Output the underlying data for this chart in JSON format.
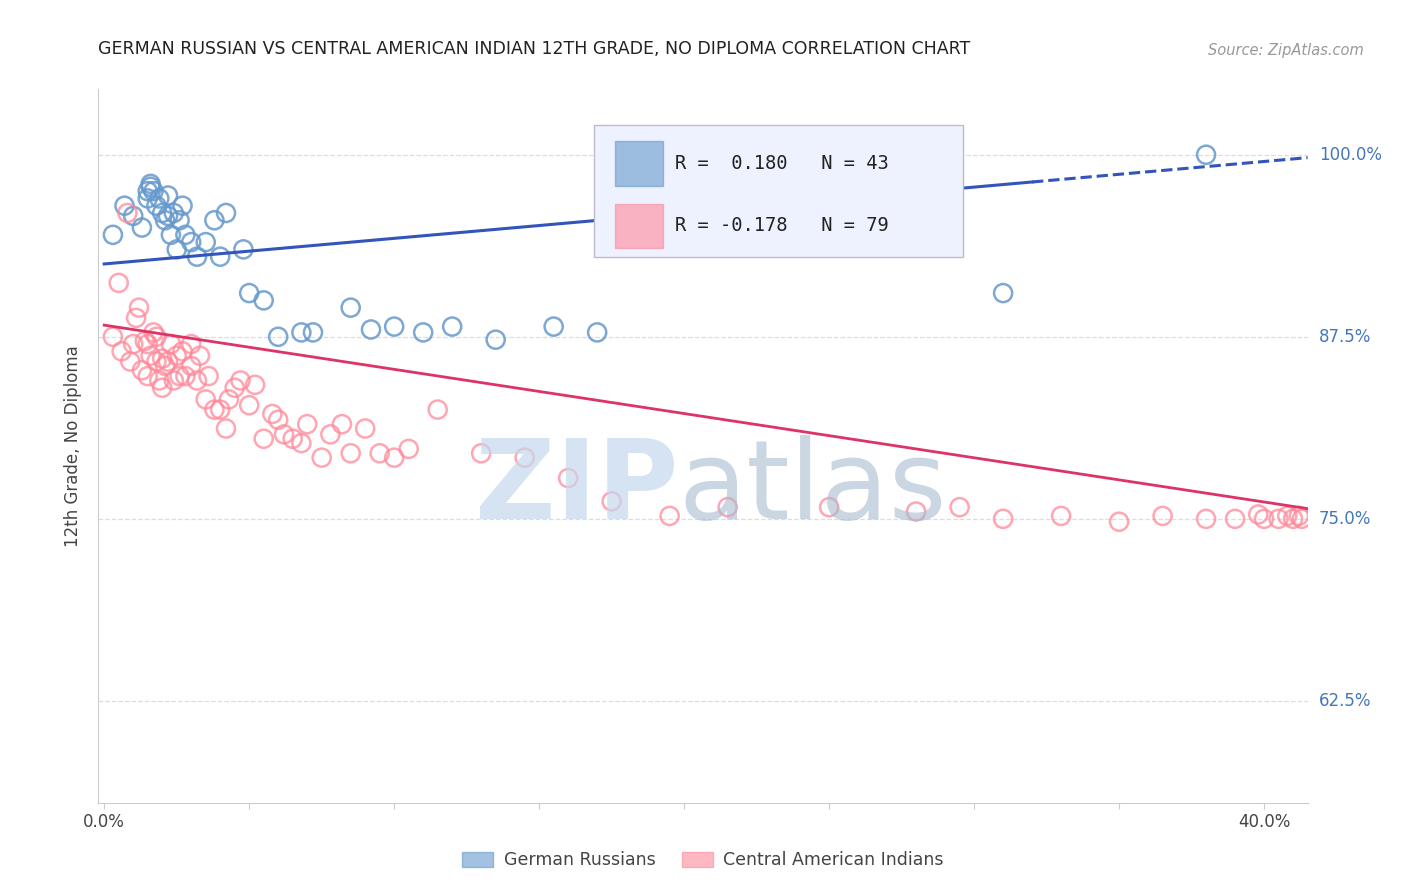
{
  "title": "GERMAN RUSSIAN VS CENTRAL AMERICAN INDIAN 12TH GRADE, NO DIPLOMA CORRELATION CHART",
  "source": "Source: ZipAtlas.com",
  "ylabel": "12th Grade, No Diploma",
  "blue_label": "German Russians",
  "pink_label": "Central American Indians",
  "blue_R": 0.18,
  "blue_N": 43,
  "pink_R": -0.178,
  "pink_N": 79,
  "xlim": [
    -0.002,
    0.415
  ],
  "ylim": [
    0.555,
    1.045
  ],
  "xticks": [
    0.0,
    0.05,
    0.1,
    0.15,
    0.2,
    0.25,
    0.3,
    0.35,
    0.4
  ],
  "yticks": [
    0.625,
    0.75,
    0.875,
    1.0
  ],
  "ytick_labels": [
    "62.5%",
    "75.0%",
    "87.5%",
    "100.0%"
  ],
  "xtick_labels": [
    "0.0%",
    "",
    "",
    "",
    "",
    "",
    "",
    "",
    "40.0%"
  ],
  "blue_line_x": [
    0.0,
    0.415
  ],
  "blue_line_y": [
    0.925,
    0.998
  ],
  "blue_line_dash_start": 0.32,
  "pink_line_x": [
    0.0,
    0.415
  ],
  "pink_line_y": [
    0.883,
    0.757
  ],
  "blue_scatter_x": [
    0.003,
    0.007,
    0.01,
    0.013,
    0.015,
    0.015,
    0.016,
    0.016,
    0.017,
    0.018,
    0.019,
    0.02,
    0.021,
    0.022,
    0.022,
    0.023,
    0.024,
    0.025,
    0.026,
    0.027,
    0.028,
    0.03,
    0.032,
    0.035,
    0.038,
    0.04,
    0.042,
    0.048,
    0.05,
    0.055,
    0.06,
    0.068,
    0.072,
    0.085,
    0.092,
    0.1,
    0.11,
    0.12,
    0.135,
    0.155,
    0.17,
    0.31,
    0.38
  ],
  "blue_scatter_y": [
    0.945,
    0.965,
    0.958,
    0.95,
    0.97,
    0.975,
    0.978,
    0.98,
    0.975,
    0.965,
    0.97,
    0.96,
    0.955,
    0.958,
    0.972,
    0.945,
    0.96,
    0.935,
    0.955,
    0.965,
    0.945,
    0.94,
    0.93,
    0.94,
    0.955,
    0.93,
    0.96,
    0.935,
    0.905,
    0.9,
    0.875,
    0.878,
    0.878,
    0.895,
    0.88,
    0.882,
    0.878,
    0.882,
    0.873,
    0.882,
    0.878,
    0.905,
    1.0
  ],
  "pink_scatter_x": [
    0.003,
    0.005,
    0.006,
    0.008,
    0.009,
    0.01,
    0.011,
    0.012,
    0.013,
    0.014,
    0.015,
    0.015,
    0.016,
    0.017,
    0.018,
    0.018,
    0.019,
    0.02,
    0.02,
    0.021,
    0.022,
    0.023,
    0.024,
    0.025,
    0.026,
    0.027,
    0.028,
    0.03,
    0.03,
    0.032,
    0.033,
    0.035,
    0.036,
    0.038,
    0.04,
    0.042,
    0.043,
    0.045,
    0.047,
    0.05,
    0.052,
    0.055,
    0.058,
    0.06,
    0.062,
    0.065,
    0.068,
    0.07,
    0.075,
    0.078,
    0.082,
    0.085,
    0.09,
    0.095,
    0.1,
    0.105,
    0.115,
    0.13,
    0.145,
    0.16,
    0.175,
    0.195,
    0.215,
    0.25,
    0.28,
    0.295,
    0.31,
    0.33,
    0.35,
    0.365,
    0.38,
    0.39,
    0.398,
    0.4,
    0.405,
    0.408,
    0.41,
    0.412,
    0.413
  ],
  "pink_scatter_y": [
    0.875,
    0.912,
    0.865,
    0.96,
    0.858,
    0.87,
    0.888,
    0.895,
    0.852,
    0.872,
    0.848,
    0.87,
    0.862,
    0.878,
    0.858,
    0.875,
    0.845,
    0.84,
    0.86,
    0.855,
    0.858,
    0.87,
    0.845,
    0.862,
    0.848,
    0.865,
    0.848,
    0.855,
    0.87,
    0.845,
    0.862,
    0.832,
    0.848,
    0.825,
    0.825,
    0.812,
    0.832,
    0.84,
    0.845,
    0.828,
    0.842,
    0.805,
    0.822,
    0.818,
    0.808,
    0.805,
    0.802,
    0.815,
    0.792,
    0.808,
    0.815,
    0.795,
    0.812,
    0.795,
    0.792,
    0.798,
    0.825,
    0.795,
    0.792,
    0.778,
    0.762,
    0.752,
    0.758,
    0.758,
    0.755,
    0.758,
    0.75,
    0.752,
    0.748,
    0.752,
    0.75,
    0.75,
    0.753,
    0.75,
    0.75,
    0.752,
    0.75,
    0.752,
    0.75
  ],
  "bg_color": "#ffffff",
  "blue_color": "#6699cc",
  "pink_color": "#ff8899",
  "blue_line_color": "#3355bb",
  "pink_line_color": "#dd3366",
  "axis_label_color": "#444444",
  "right_tick_color": "#4477bb",
  "grid_color": "#dddddd",
  "watermark_zip_color": "#c5d8ee",
  "watermark_atlas_color": "#a8bbd0",
  "legend_bg": "#eef2ff"
}
